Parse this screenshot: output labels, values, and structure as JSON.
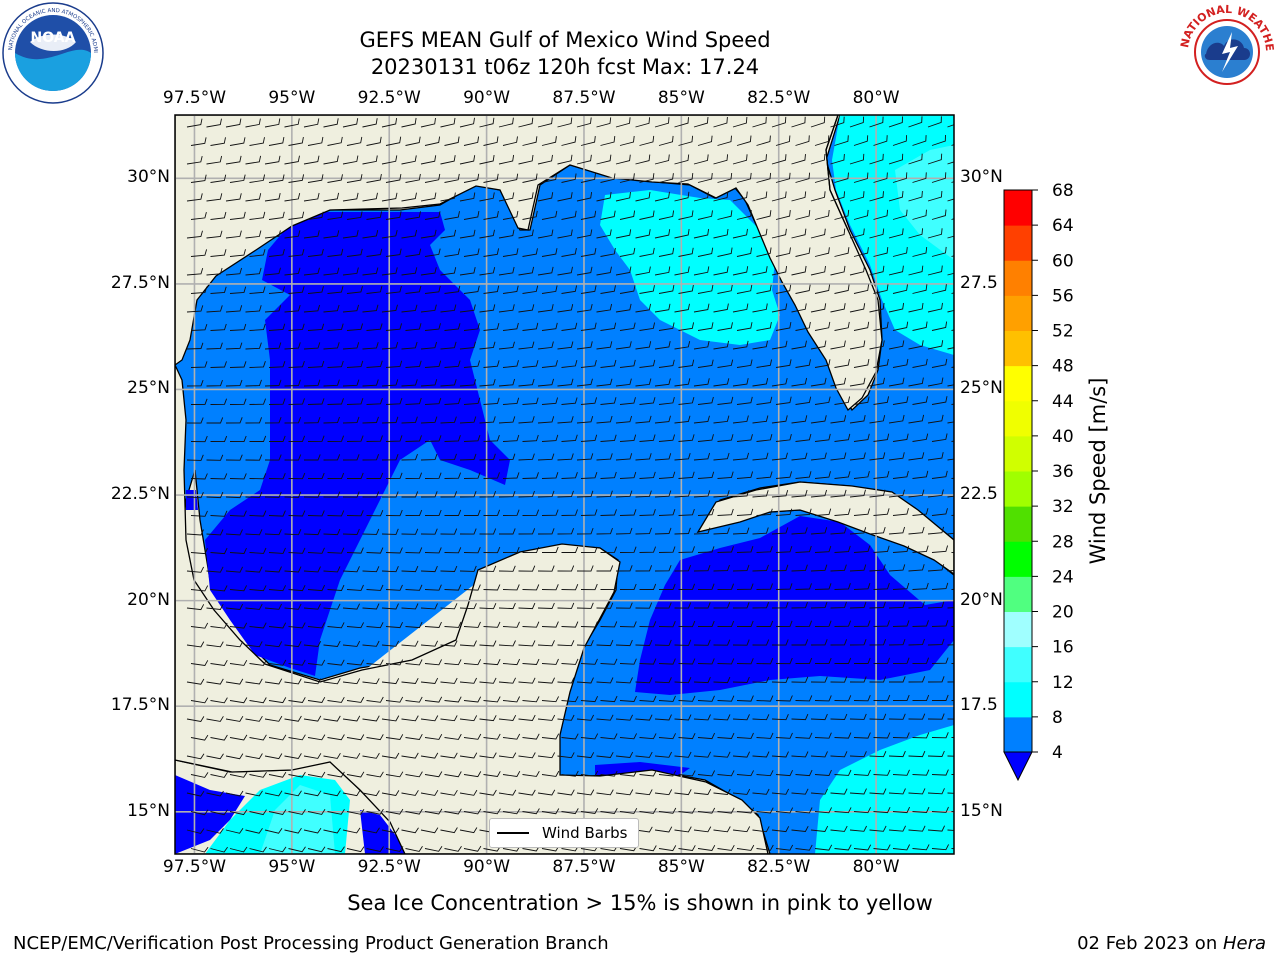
{
  "title": {
    "line1": "GEFS MEAN Gulf of Mexico Wind Speed",
    "line2": "20230131 t06z 120h fcst   Max: 17.24"
  },
  "logos": {
    "left": {
      "name": "noaa-logo",
      "text": "NOAA",
      "ring_text": "NATIONAL OCEANIC AND ATMOSPHERIC ADMINISTRATION · U.S. DEPARTMENT OF COMMERCE"
    },
    "right": {
      "name": "nws-logo",
      "ring_text": "NATIONAL WEATHER SERVICE"
    }
  },
  "map": {
    "lon_range": [
      -98.0,
      -78.0
    ],
    "lat_range": [
      14.0,
      31.5
    ],
    "lon_ticks": [
      "97.5°W",
      "95°W",
      "92.5°W",
      "90°W",
      "87.5°W",
      "85°W",
      "82.5°W",
      "80°W"
    ],
    "lat_ticks": [
      "15°N",
      "17.5°N",
      "20°N",
      "22.5°N",
      "25°N",
      "27.5°N",
      "30°N"
    ],
    "lat_ticks_right": [
      "15°N",
      "17.5",
      "20°N",
      "22.5",
      "25°N",
      "27.5",
      "30°N"
    ],
    "grid": true,
    "legend": {
      "label": "Wind Barbs",
      "placement": "bottom-center"
    }
  },
  "colorbar": {
    "label": "Wind Speed [m/s]",
    "ticks": [
      "4",
      "8",
      "12",
      "16",
      "20",
      "24",
      "28",
      "32",
      "36",
      "40",
      "44",
      "48",
      "52",
      "56",
      "60",
      "64",
      "68"
    ],
    "colors": [
      "#0000ff",
      "#0080ff",
      "#00ffff",
      "#40ffff",
      "#a0ffff",
      "#40ff80",
      "#00ff00",
      "#50e000",
      "#a0ff00",
      "#d0ff00",
      "#f0ff00",
      "#ffff00",
      "#ffc000",
      "#ffa000",
      "#ff8000",
      "#ff4000",
      "#ff0000"
    ],
    "extend_below": "#0000ff"
  },
  "caption": "Sea Ice Concentration > 15% is shown in pink to yellow",
  "footer": {
    "left": "NCEP/EMC/Verification Post Processing Product Generation Branch",
    "right_date": "02 Feb 2023 on ",
    "right_host": "Hera"
  },
  "chart_data": {
    "type": "heatmap",
    "title": "GEFS MEAN Gulf of Mexico Wind Speed",
    "subtitle": "20230131 t06z 120h fcst   Max: 17.24",
    "units": "m/s",
    "colorbar_label": "Wind Speed [m/s]",
    "levels": [
      4,
      8,
      12,
      16,
      20,
      24,
      28,
      32,
      36,
      40,
      44,
      48,
      52,
      56,
      60,
      64,
      68
    ],
    "max_value": 17.24,
    "wind_direction_dominant": "from east / northeast"
  }
}
